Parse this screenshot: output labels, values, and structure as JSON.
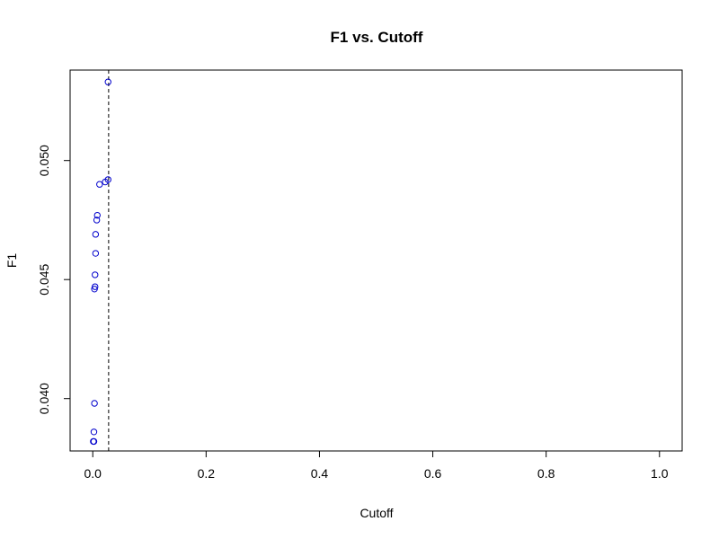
{
  "chart_data": {
    "type": "scatter",
    "title": "F1 vs. Cutoff",
    "xlabel": "Cutoff",
    "ylabel": "F1",
    "xlim": [
      -0.04,
      1.04
    ],
    "ylim": [
      0.0378,
      0.0538
    ],
    "x_ticks": [
      {
        "value": 0.0,
        "label": "0.0"
      },
      {
        "value": 0.2,
        "label": "0.2"
      },
      {
        "value": 0.4,
        "label": "0.4"
      },
      {
        "value": 0.6,
        "label": "0.6"
      },
      {
        "value": 0.8,
        "label": "0.8"
      },
      {
        "value": 1.0,
        "label": "1.0"
      }
    ],
    "y_ticks": [
      {
        "value": 0.04,
        "label": "0.040"
      },
      {
        "value": 0.045,
        "label": "0.045"
      },
      {
        "value": 0.05,
        "label": "0.050"
      }
    ],
    "point_color": "#0000cc",
    "reference_line": {
      "axis": "x",
      "value": 0.028,
      "style": "dashed",
      "color": "#000000"
    },
    "grid": false,
    "series": [
      {
        "x": [
          0.001,
          0.002,
          0.002,
          0.003,
          0.003,
          0.004,
          0.004,
          0.005,
          0.005,
          0.007,
          0.008,
          0.012,
          0.022,
          0.027,
          0.027
        ],
        "y": [
          0.0382,
          0.0382,
          0.0386,
          0.0398,
          0.0446,
          0.0447,
          0.0452,
          0.0461,
          0.0469,
          0.0475,
          0.0477,
          0.049,
          0.0491,
          0.0492,
          0.0533
        ]
      }
    ]
  }
}
